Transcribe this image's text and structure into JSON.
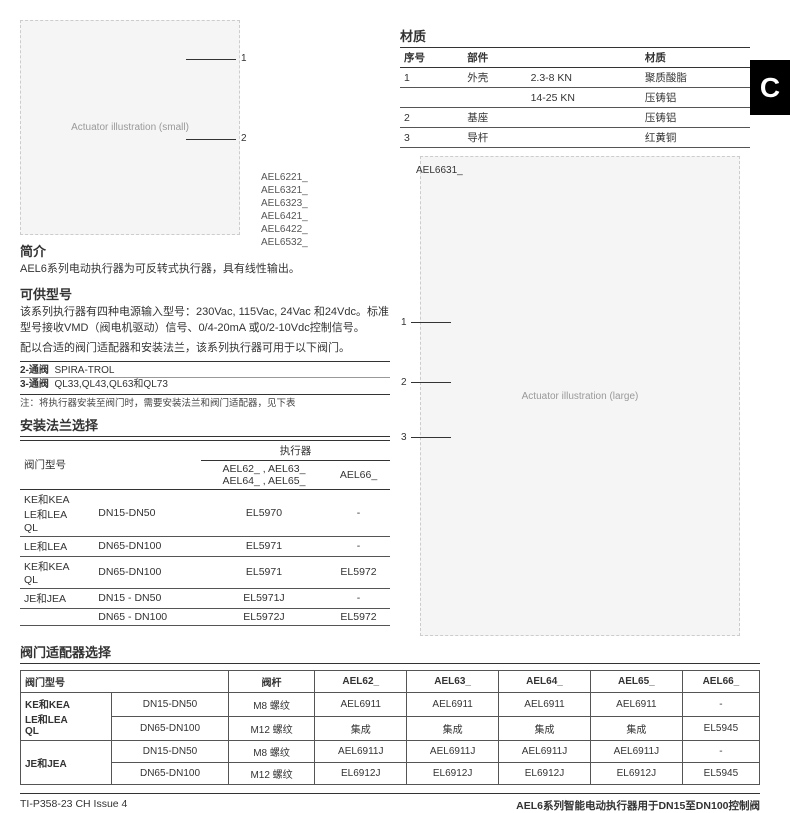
{
  "tab": "C",
  "fig1": {
    "alt": "Actuator illustration (small)",
    "callouts": [
      "1",
      "2"
    ],
    "models": [
      "AEL6221_",
      "AEL6321_",
      "AEL6323_",
      "AEL6421_",
      "AEL6422_",
      "AEL6532_"
    ]
  },
  "fig2": {
    "alt": "Actuator illustration (large)",
    "callouts": [
      "1",
      "2",
      "3"
    ],
    "model": "AEL6631_"
  },
  "material": {
    "heading": "材质",
    "cols": [
      "序号",
      "部件",
      "",
      "材质"
    ],
    "rows": [
      {
        "no": "1",
        "part": "外壳",
        "sub": "2.3-8 KN",
        "mat": "聚质酸脂"
      },
      {
        "no": "",
        "part": "",
        "sub": "14-25 KN",
        "mat": "压铸铝"
      },
      {
        "no": "2",
        "part": "基座",
        "sub": "",
        "mat": "压铸铝"
      },
      {
        "no": "3",
        "part": "导杆",
        "sub": "",
        "mat": "红黄铜"
      }
    ]
  },
  "intro": {
    "heading": "简介",
    "text": "AEL6系列电动执行器为可反转式执行器，具有线性输出。"
  },
  "models": {
    "heading": "可供型号",
    "p1": "该系列执行器有四种电源输入型号：230Vac, 115Vac, 24Vac 和24Vdc。标准型号接收VMD（阀电机驱动）信号、0/4-20mA 或0/2-10Vdc控制信号。",
    "p2": "配以合适的阀门适配器和安装法兰，该系列执行器可用于以下阀门。"
  },
  "compat": {
    "r1a": "2-通阀",
    "r1b": "SPIRA-TROL",
    "r2a": "3-通阀",
    "r2b": "QL33,QL43,QL63和QL73",
    "note": "注：将执行器安装至阀门时，需要安装法兰和阀门适配器，见下表"
  },
  "flange": {
    "heading": "安装法兰选择",
    "cols": [
      "阀门型号",
      "",
      "AEL62_ , AEL63_\nAEL64_ , AEL65_",
      "AEL66_"
    ],
    "super": "执行器",
    "rows": [
      {
        "tp": "KE和KEA\nLE和LEA\nQL",
        "dn": "DN15-DN50",
        "a": "EL5970",
        "b": "-"
      },
      {
        "tp": "LE和LEA",
        "dn": "DN65-DN100",
        "a": "EL5971",
        "b": "-"
      },
      {
        "tp": "KE和KEA\nQL",
        "dn": "DN65-DN100",
        "a": "EL5971",
        "b": "EL5972"
      },
      {
        "tp": "JE和JEA",
        "dn": "DN15 - DN50",
        "a": "EL5971J",
        "b": "-"
      },
      {
        "tp": "",
        "dn": "DN65 - DN100",
        "a": "EL5972J",
        "b": "EL5972"
      }
    ]
  },
  "adapter": {
    "heading": "阀门适配器选择",
    "cols": [
      "阀门型号",
      "",
      "阀杆",
      "AEL62_",
      "AEL63_",
      "AEL64_",
      "AEL65_",
      "AEL66_"
    ],
    "rows": [
      {
        "tp": "KE和KEA\nLE和LEA\nQL",
        "dn": "DN15-DN50",
        "stem": "M8 螺纹",
        "c": [
          "AEL6911",
          "AEL6911",
          "AEL6911",
          "AEL6911",
          "-"
        ]
      },
      {
        "tp": "",
        "dn": "DN65-DN100",
        "stem": "M12 螺纹",
        "c": [
          "集成",
          "集成",
          "集成",
          "集成",
          "EL5945"
        ]
      },
      {
        "tp": "JE和JEA",
        "dn": "DN15-DN50",
        "stem": "M8 螺纹",
        "c": [
          "AEL6911J",
          "AEL6911J",
          "AEL6911J",
          "AEL6911J",
          "-"
        ]
      },
      {
        "tp": "",
        "dn": "DN65-DN100",
        "stem": "M12 螺纹",
        "c": [
          "EL6912J",
          "EL6912J",
          "EL6912J",
          "EL6912J",
          "EL5945"
        ]
      }
    ]
  },
  "footer": {
    "left": "TI-P358-23 CH Issue 4",
    "right": "AEL6系列智能电动执行器用于DN15至DN100控制阀"
  }
}
